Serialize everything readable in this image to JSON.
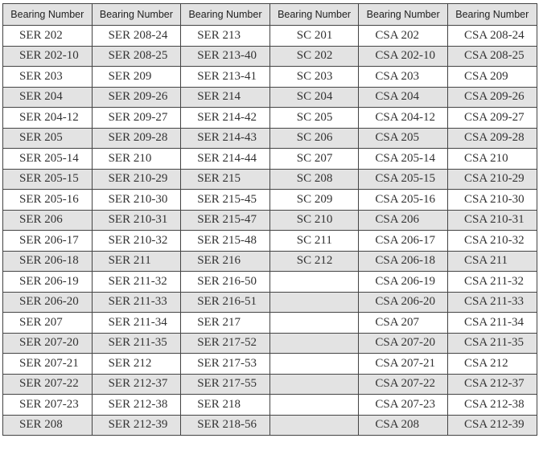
{
  "table": {
    "headers": [
      "Bearing Number",
      "Bearing Number",
      "Bearing Number",
      "Bearing Number",
      "Bearing Number",
      "Bearing Number"
    ],
    "rows": [
      [
        "SER 202",
        "SER 208-24",
        "SER 213",
        "SC 201",
        "CSA 202",
        "CSA 208-24"
      ],
      [
        "SER 202-10",
        "SER 208-25",
        "SER 213-40",
        "SC 202",
        "CSA 202-10",
        "CSA 208-25"
      ],
      [
        "SER 203",
        "SER 209",
        "SER 213-41",
        "SC 203",
        "CSA 203",
        "CSA 209"
      ],
      [
        "SER 204",
        "SER 209-26",
        "SER 214",
        "SC 204",
        "CSA 204",
        "CSA 209-26"
      ],
      [
        "SER 204-12",
        "SER 209-27",
        "SER 214-42",
        "SC 205",
        "CSA 204-12",
        "CSA 209-27"
      ],
      [
        "SER 205",
        "SER 209-28",
        "SER 214-43",
        "SC 206",
        "CSA 205",
        "CSA 209-28"
      ],
      [
        "SER 205-14",
        "SER 210",
        "SER 214-44",
        "SC 207",
        "CSA 205-14",
        "CSA 210"
      ],
      [
        "SER 205-15",
        "SER 210-29",
        "SER 215",
        "SC 208",
        "CSA 205-15",
        "CSA 210-29"
      ],
      [
        "SER 205-16",
        "SER 210-30",
        "SER 215-45",
        "SC 209",
        "CSA 205-16",
        "CSA 210-30"
      ],
      [
        "SER 206",
        "SER 210-31",
        "SER 215-47",
        "SC 210",
        "CSA 206",
        "CSA 210-31"
      ],
      [
        "SER 206-17",
        "SER 210-32",
        "SER 215-48",
        "SC 211",
        "CSA 206-17",
        "CSA 210-32"
      ],
      [
        "SER 206-18",
        "SER 211",
        "SER 216",
        "SC 212",
        "CSA 206-18",
        "CSA 211"
      ],
      [
        "SER 206-19",
        "SER 211-32",
        "SER 216-50",
        "",
        "CSA 206-19",
        "CSA 211-32"
      ],
      [
        "SER 206-20",
        "SER 211-33",
        "SER 216-51",
        "",
        "CSA 206-20",
        "CSA 211-33"
      ],
      [
        "SER 207",
        "SER 211-34",
        "SER 217",
        "",
        "CSA 207",
        "CSA 211-34"
      ],
      [
        "SER 207-20",
        "SER 211-35",
        "SER 217-52",
        "",
        "CSA 207-20",
        "CSA 211-35"
      ],
      [
        "SER 207-21",
        "SER 212",
        "SER 217-53",
        "",
        "CSA 207-21",
        "CSA 212"
      ],
      [
        "SER 207-22",
        "SER 212-37",
        "SER 217-55",
        "",
        "CSA 207-22",
        "CSA 212-37"
      ],
      [
        "SER 207-23",
        "SER 212-38",
        "SER 218",
        "",
        "CSA 207-23",
        "CSA 212-38"
      ],
      [
        "SER 208",
        "SER 212-39",
        "SER 218-56",
        "",
        "CSA 208",
        "CSA 212-39"
      ]
    ]
  }
}
